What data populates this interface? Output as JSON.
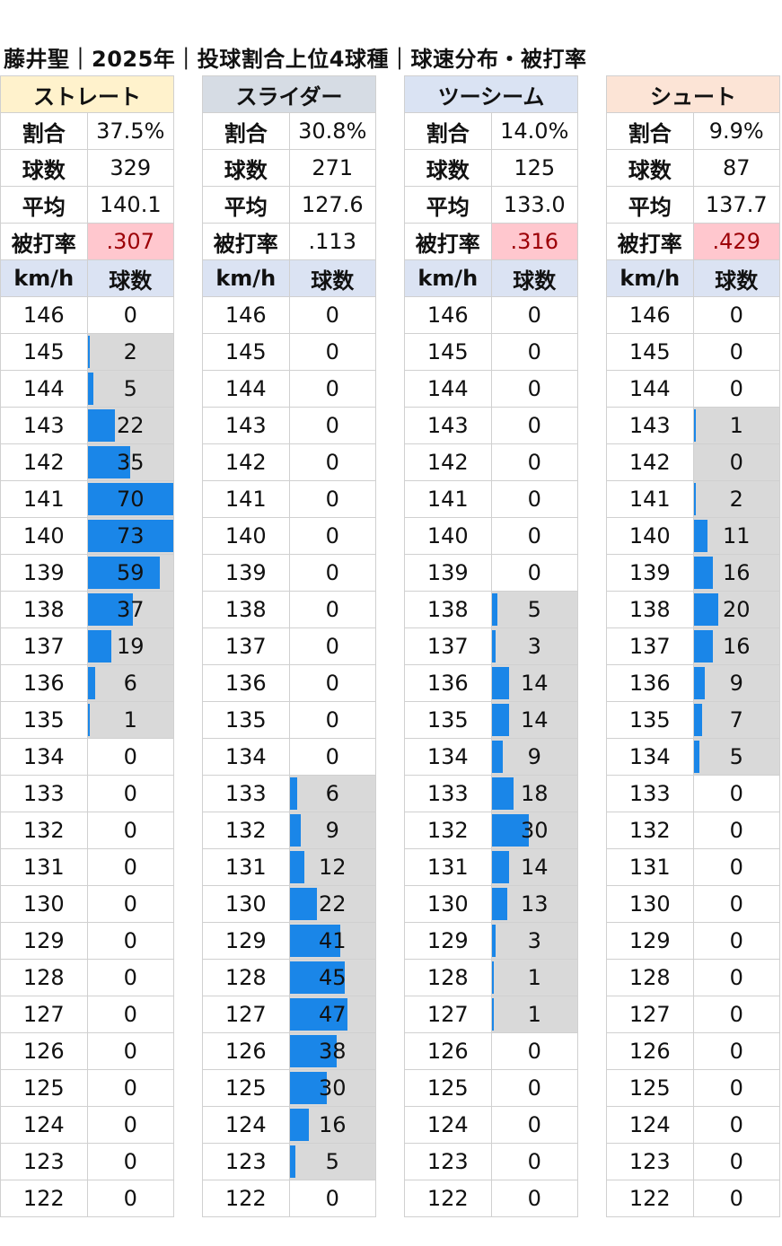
{
  "title": "藤井聖｜2025年｜投球割合上位4球種｜球速分布・被打率",
  "labels": {
    "ratio": "割合",
    "count": "球数",
    "avg": "平均",
    "babip": "被打率",
    "kmh": "km/h",
    "pitches": "球数"
  },
  "speeds": [
    146,
    145,
    144,
    143,
    142,
    141,
    140,
    139,
    138,
    137,
    136,
    135,
    134,
    133,
    132,
    131,
    130,
    129,
    128,
    127,
    126,
    125,
    124,
    123,
    122
  ],
  "chart_data": {
    "type": "table",
    "max_count": 73,
    "pitches": [
      {
        "name": "ストレート",
        "header_color": "#fff2cc",
        "ratio": "37.5%",
        "count": "329",
        "avg": "140.1",
        "babip": ".307",
        "babip_highlight": true,
        "counts": [
          0,
          2,
          5,
          22,
          35,
          70,
          73,
          59,
          37,
          19,
          6,
          1,
          0,
          0,
          0,
          0,
          0,
          0,
          0,
          0,
          0,
          0,
          0,
          0,
          0
        ]
      },
      {
        "name": "スライダー",
        "header_color": "#d6dce4",
        "ratio": "30.8%",
        "count": "271",
        "avg": "127.6",
        "babip": ".113",
        "babip_highlight": false,
        "counts": [
          0,
          0,
          0,
          0,
          0,
          0,
          0,
          0,
          0,
          0,
          0,
          0,
          0,
          6,
          9,
          12,
          22,
          41,
          45,
          47,
          38,
          30,
          16,
          5,
          0
        ]
      },
      {
        "name": "ツーシーム",
        "header_color": "#dae3f3",
        "ratio": "14.0%",
        "count": "125",
        "avg": "133.0",
        "babip": ".316",
        "babip_highlight": true,
        "counts": [
          0,
          0,
          0,
          0,
          0,
          0,
          0,
          0,
          5,
          3,
          14,
          14,
          9,
          18,
          30,
          14,
          13,
          3,
          1,
          1,
          0,
          0,
          0,
          0,
          0
        ]
      },
      {
        "name": "シュート",
        "header_color": "#fce4d6",
        "ratio": "9.9%",
        "count": "87",
        "avg": "137.7",
        "babip": ".429",
        "babip_highlight": true,
        "counts": [
          0,
          0,
          0,
          1,
          0,
          2,
          11,
          16,
          20,
          16,
          9,
          7,
          5,
          0,
          0,
          0,
          0,
          0,
          0,
          0,
          0,
          0,
          0,
          0,
          0
        ]
      }
    ]
  }
}
